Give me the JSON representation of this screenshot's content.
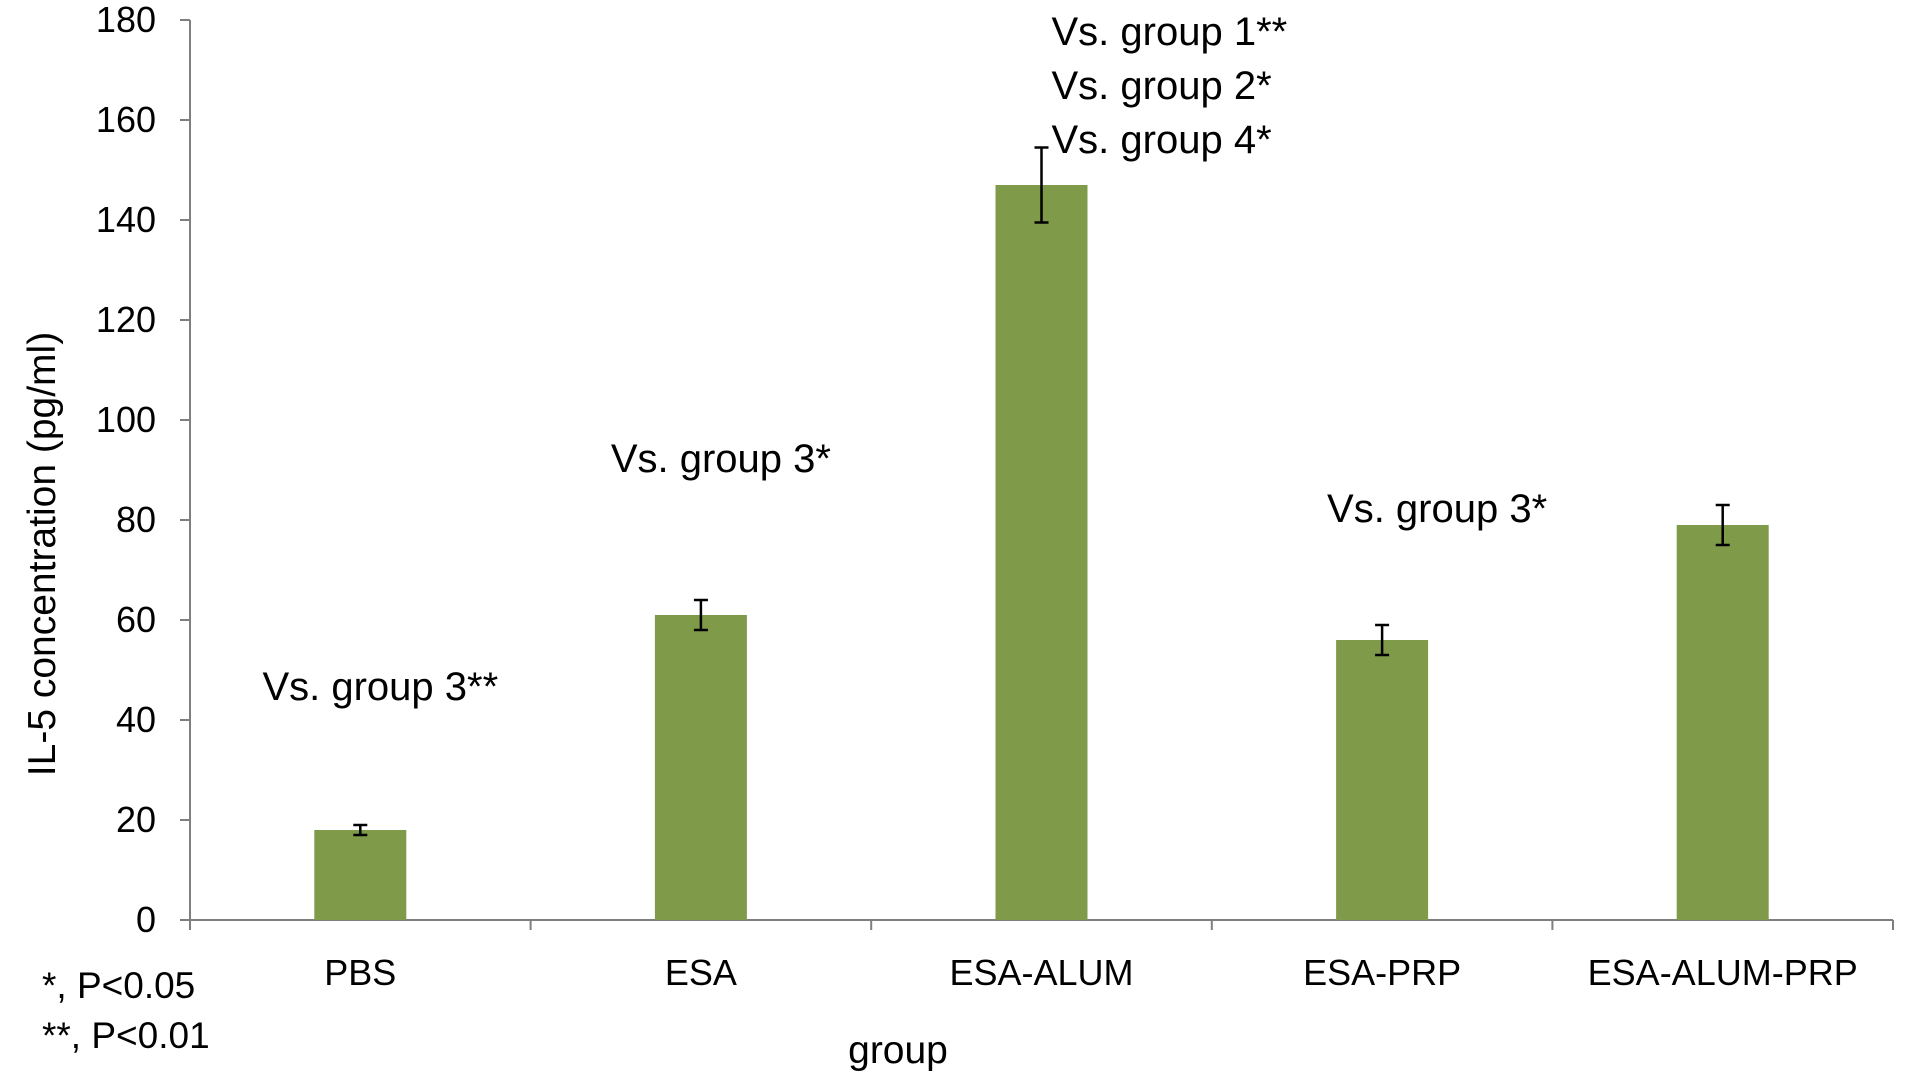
{
  "chart_data": {
    "type": "bar",
    "title": "",
    "xlabel": "group",
    "ylabel": "IL-5 concentration (pg/ml)",
    "ylim": [
      0,
      180
    ],
    "yticks": [
      0,
      20,
      40,
      60,
      80,
      100,
      120,
      140,
      160,
      180
    ],
    "grid": false,
    "categories": [
      "PBS",
      "ESA",
      "ESA-ALUM",
      "ESA-PRP",
      "ESA-ALUM-PRP"
    ],
    "values": [
      18,
      61,
      147,
      56,
      79
    ],
    "errors": [
      1,
      3,
      7.5,
      3,
      4
    ],
    "bar_color": "#7f9b4a",
    "annotations": [
      {
        "category": "PBS",
        "lines": [
          "Vs. group 3**"
        ]
      },
      {
        "category": "ESA",
        "lines": [
          "Vs. group 3*"
        ]
      },
      {
        "category": "ESA-ALUM",
        "lines": [
          "Vs. group 1**",
          "Vs. group 2*",
          "Vs. group 4*"
        ]
      },
      {
        "category": "ESA-PRP",
        "lines": [
          "Vs. group 3*"
        ]
      }
    ],
    "footnotes": [
      "*, P<0.05",
      "**, P<0.01"
    ]
  }
}
